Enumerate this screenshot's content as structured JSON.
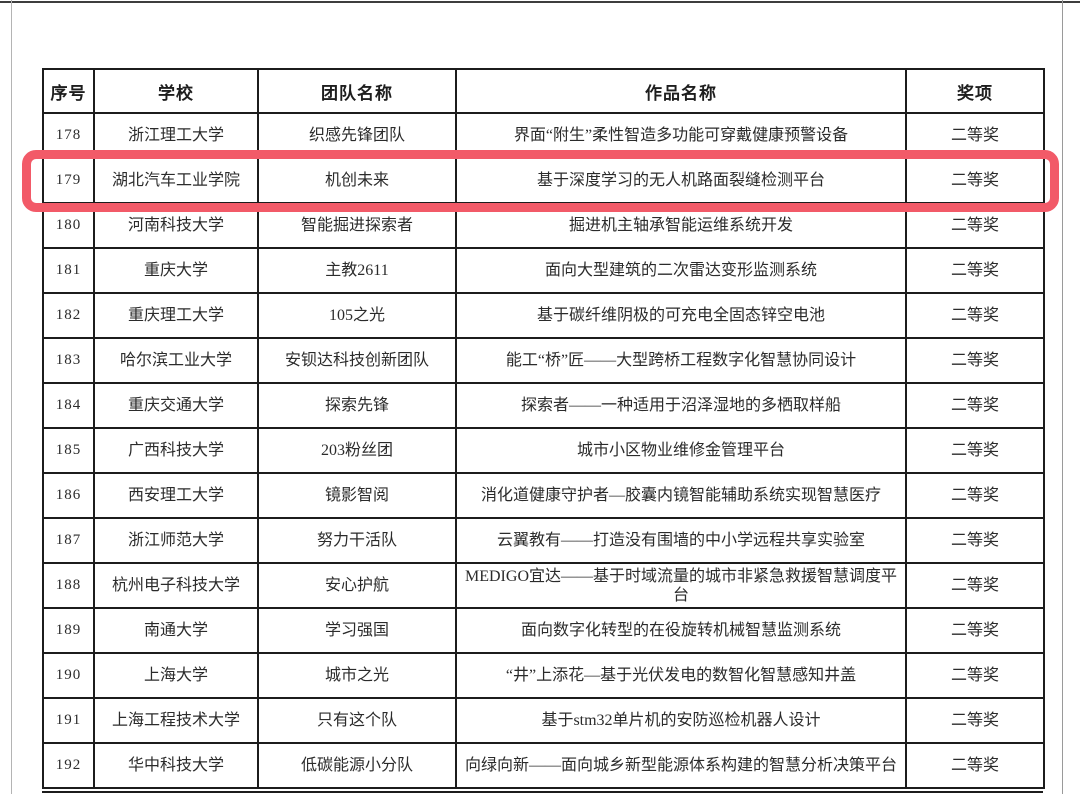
{
  "page": {
    "description": "Scanned award list table with one row circled in red",
    "highlighted_row_no": "179"
  },
  "colors": {
    "highlight_box": "#f25a68",
    "table_border": "#1c1c1c",
    "text": "#2b2b2b",
    "background": "#ffffff"
  },
  "table": {
    "headers": [
      "序号",
      "学校",
      "团队名称",
      "作品名称",
      "奖项"
    ],
    "rows": [
      {
        "no": "178",
        "school": "浙江理工大学",
        "team": "织感先锋团队",
        "work": "界面“附生”柔性智造多功能可穿戴健康预警设备",
        "award": "二等奖",
        "highlighted": false
      },
      {
        "no": "179",
        "school": "湖北汽车工业学院",
        "team": "机创未来",
        "work": "基于深度学习的无人机路面裂缝检测平台",
        "award": "二等奖",
        "highlighted": true
      },
      {
        "no": "180",
        "school": "河南科技大学",
        "team": "智能掘进探索者",
        "work": "掘进机主轴承智能运维系统开发",
        "award": "二等奖",
        "highlighted": false
      },
      {
        "no": "181",
        "school": "重庆大学",
        "team": "主教2611",
        "work": "面向大型建筑的二次雷达变形监测系统",
        "award": "二等奖",
        "highlighted": false
      },
      {
        "no": "182",
        "school": "重庆理工大学",
        "team": "105之光",
        "work": "基于碳纤维阴极的可充电全固态锌空电池",
        "award": "二等奖",
        "highlighted": false
      },
      {
        "no": "183",
        "school": "哈尔滨工业大学",
        "team": "安钡达科技创新团队",
        "work": "能工“桥”匠——大型跨桥工程数字化智慧协同设计",
        "award": "二等奖",
        "highlighted": false
      },
      {
        "no": "184",
        "school": "重庆交通大学",
        "team": "探索先锋",
        "work": "探索者——一种适用于沼泽湿地的多栖取样船",
        "award": "二等奖",
        "highlighted": false
      },
      {
        "no": "185",
        "school": "广西科技大学",
        "team": "203粉丝团",
        "work": "城市小区物业维修金管理平台",
        "award": "二等奖",
        "highlighted": false
      },
      {
        "no": "186",
        "school": "西安理工大学",
        "team": "镜影智阅",
        "work": "消化道健康守护者—胶囊内镜智能辅助系统实现智慧医疗",
        "award": "二等奖",
        "highlighted": false
      },
      {
        "no": "187",
        "school": "浙江师范大学",
        "team": "努力干活队",
        "work": "云翼教有——打造没有围墙的中小学远程共享实验室",
        "award": "二等奖",
        "highlighted": false
      },
      {
        "no": "188",
        "school": "杭州电子科技大学",
        "team": "安心护航",
        "work": "MEDIGO宜达——基于时域流量的城市非紧急救援智慧调度平台",
        "award": "二等奖",
        "highlighted": false
      },
      {
        "no": "189",
        "school": "南通大学",
        "team": "学习强国",
        "work": "面向数字化转型的在役旋转机械智慧监测系统",
        "award": "二等奖",
        "highlighted": false
      },
      {
        "no": "190",
        "school": "上海大学",
        "team": "城市之光",
        "work": "“井”上添花—基于光伏发电的数智化智慧感知井盖",
        "award": "二等奖",
        "highlighted": false
      },
      {
        "no": "191",
        "school": "上海工程技术大学",
        "team": "只有这个队",
        "work": "基于stm32单片机的安防巡检机器人设计",
        "award": "二等奖",
        "highlighted": false
      },
      {
        "no": "192",
        "school": "华中科技大学",
        "team": "低碳能源小分队",
        "work": "向绿向新——面向城乡新型能源体系构建的智慧分析决策平台",
        "award": "二等奖",
        "highlighted": false
      }
    ]
  }
}
